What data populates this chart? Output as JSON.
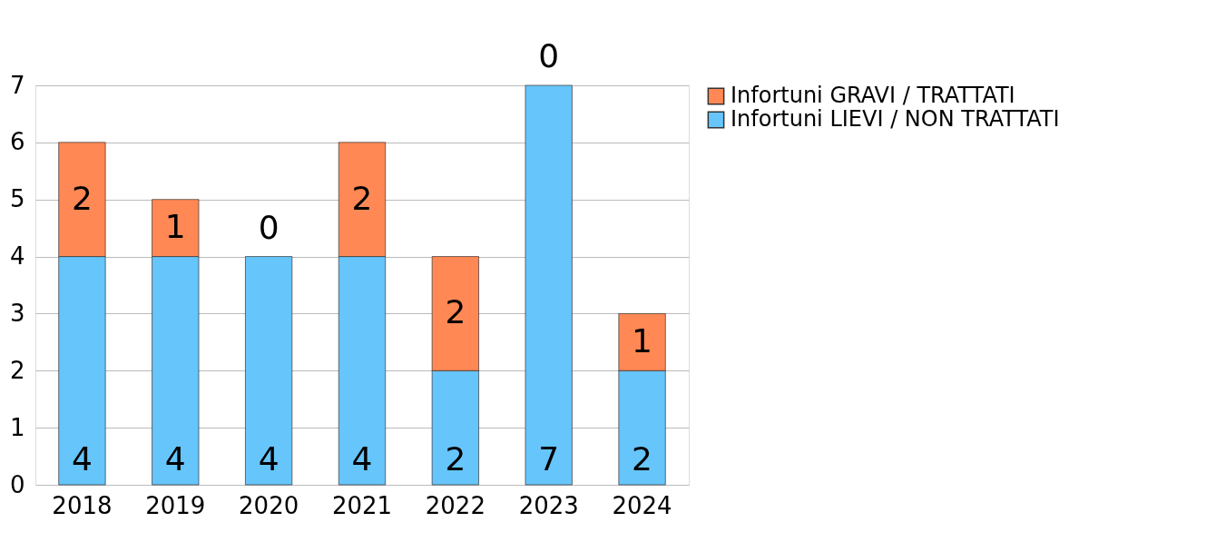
{
  "chart_data": {
    "type": "bar",
    "stacked": true,
    "categories": [
      "2018",
      "2019",
      "2020",
      "2021",
      "2022",
      "2023",
      "2024"
    ],
    "series": [
      {
        "name": "Infortuni LIEVI / NON TRATTATI",
        "color": "#66c5fb",
        "values": [
          4,
          4,
          4,
          4,
          2,
          7,
          2
        ]
      },
      {
        "name": "Infortuni GRAVI / TRATTATI",
        "color": "#ff8855",
        "values": [
          2,
          1,
          0,
          2,
          2,
          0,
          1
        ]
      }
    ],
    "ylim": [
      0,
      7
    ],
    "yticks": [
      0,
      1,
      2,
      3,
      4,
      5,
      6,
      7
    ],
    "grid": "y",
    "legend": "right",
    "data_labels": true
  }
}
